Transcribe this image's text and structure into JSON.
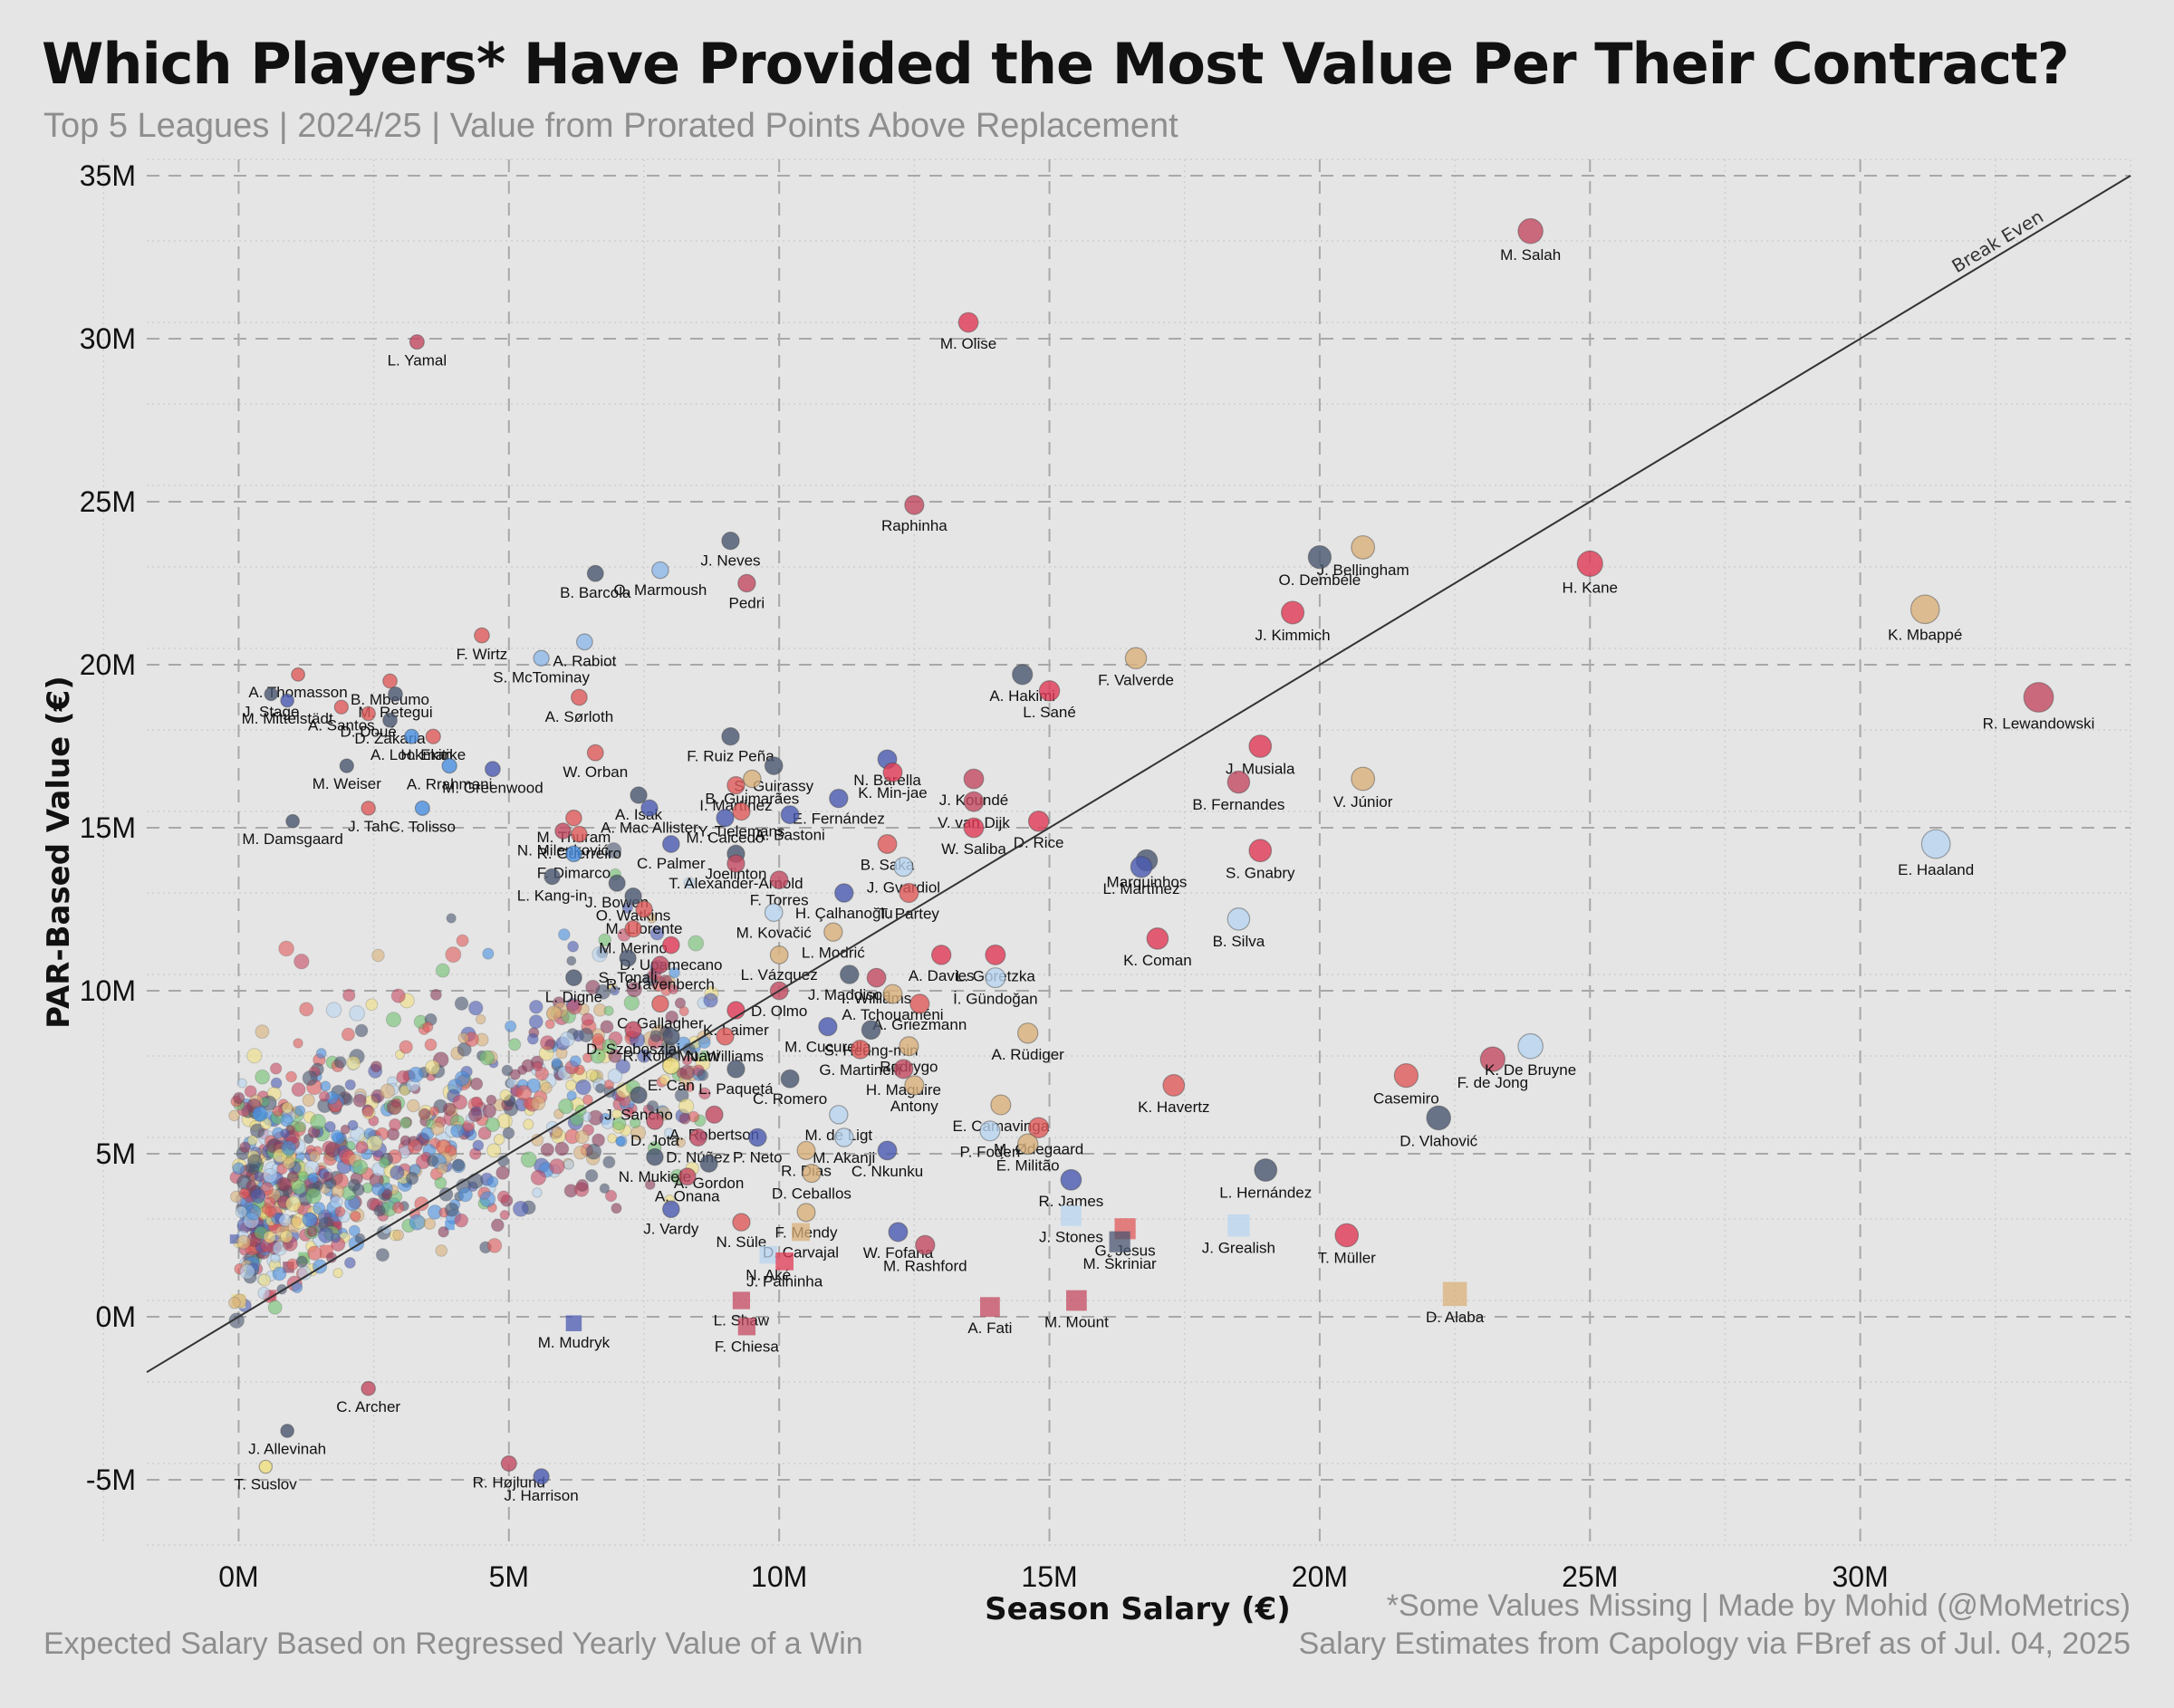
{
  "header": {
    "title": "Which Players* Have Provided the Most Value Per Their Contract?",
    "subtitle": "Top 5 Leagues | 2024/25 | Value from Prorated Points Above Replacement"
  },
  "footer": {
    "left": "Expected Salary Based on Regressed Yearly Value of a Win",
    "note": "*Some Values Missing | Made by Mohid (@MoMetrics)",
    "source": "Salary Estimates from Capology via FBref as of Jul. 04, 2025"
  },
  "chart_data": {
    "type": "scatter",
    "xlabel": "Season Salary (€)",
    "ylabel": "PAR-Based Value (€)",
    "xlim": [
      -1.7,
      35
    ],
    "ylim": [
      -7,
      35.5
    ],
    "xticks": [
      0,
      5,
      10,
      15,
      20,
      25,
      30
    ],
    "yticks": [
      -5,
      0,
      5,
      10,
      15,
      20,
      25,
      30,
      35
    ],
    "tick_suffix": "M",
    "break_even_label": "Break Even",
    "grid": true,
    "labeled_points": [
      {
        "name": "M. Salah",
        "x": 23.9,
        "y": 33.3,
        "c": "#c44a62"
      },
      {
        "name": "L. Yamal",
        "x": 3.3,
        "y": 29.9,
        "c": "#c44a62"
      },
      {
        "name": "M. Olise",
        "x": 13.5,
        "y": 30.5,
        "c": "#e03a55"
      },
      {
        "name": "Raphinha",
        "x": 12.5,
        "y": 24.9,
        "c": "#c44a62"
      },
      {
        "name": "J. Neves",
        "x": 9.1,
        "y": 23.8,
        "c": "#4a5670"
      },
      {
        "name": "O. Marmoush",
        "x": 7.8,
        "y": 22.9,
        "c": "#8fb8e8"
      },
      {
        "name": "B. Barcola",
        "x": 6.6,
        "y": 22.8,
        "c": "#4a5670"
      },
      {
        "name": "Pedri",
        "x": 9.4,
        "y": 22.5,
        "c": "#c44a62"
      },
      {
        "name": "J. Bellingham",
        "x": 20.8,
        "y": 23.6,
        "c": "#d9b07a"
      },
      {
        "name": "O. Dembélé",
        "x": 20.0,
        "y": 23.3,
        "c": "#4a5670"
      },
      {
        "name": "H. Kane",
        "x": 25.0,
        "y": 23.1,
        "c": "#e03a55"
      },
      {
        "name": "J. Kimmich",
        "x": 19.5,
        "y": 21.6,
        "c": "#e03a55"
      },
      {
        "name": "K. Mbappé",
        "x": 31.2,
        "y": 21.7,
        "c": "#d9b07a"
      },
      {
        "name": "R. Lewandowski",
        "x": 33.3,
        "y": 19.0,
        "c": "#c44a62"
      },
      {
        "name": "F. Wirtz",
        "x": 4.5,
        "y": 20.9,
        "c": "#e05a5a"
      },
      {
        "name": "A. Rabiot",
        "x": 6.4,
        "y": 20.7,
        "c": "#8fb8e8"
      },
      {
        "name": "S. McTominay",
        "x": 5.6,
        "y": 20.2,
        "c": "#8fb8e8"
      },
      {
        "name": "A. Thomasson",
        "x": 1.1,
        "y": 19.7,
        "c": "#e05a5a"
      },
      {
        "name": "B. Mbeumo",
        "x": 2.8,
        "y": 19.5,
        "c": "#e05a5a"
      },
      {
        "name": "J. Stage",
        "x": 0.6,
        "y": 19.1,
        "c": "#4a5670"
      },
      {
        "name": "M. Mittelstädt",
        "x": 0.9,
        "y": 18.9,
        "c": "#4a5ab0"
      },
      {
        "name": "M. Retegui",
        "x": 2.9,
        "y": 19.1,
        "c": "#4a5670"
      },
      {
        "name": "A. Sørloth",
        "x": 6.3,
        "y": 19.0,
        "c": "#e05a5a"
      },
      {
        "name": "A. Santos",
        "x": 1.9,
        "y": 18.7,
        "c": "#e05a5a"
      },
      {
        "name": "D. Doué",
        "x": 2.4,
        "y": 18.5,
        "c": "#e05a5a"
      },
      {
        "name": "D. Zakaria",
        "x": 2.8,
        "y": 18.3,
        "c": "#4a5670"
      },
      {
        "name": "A. Hakimi",
        "x": 14.5,
        "y": 19.7,
        "c": "#4a5670"
      },
      {
        "name": "F. Valverde",
        "x": 16.6,
        "y": 20.2,
        "c": "#d9b07a"
      },
      {
        "name": "L. Sané",
        "x": 15.0,
        "y": 19.2,
        "c": "#e03a55"
      },
      {
        "name": "A. Lookman",
        "x": 3.2,
        "y": 17.8,
        "c": "#4a8fe0"
      },
      {
        "name": "H. Ekitike",
        "x": 3.6,
        "y": 17.8,
        "c": "#e05a5a"
      },
      {
        "name": "W. Orban",
        "x": 6.6,
        "y": 17.3,
        "c": "#e05a5a"
      },
      {
        "name": "F. Ruiz Peña",
        "x": 9.1,
        "y": 17.8,
        "c": "#4a5670"
      },
      {
        "name": "S. Guirassy",
        "x": 9.9,
        "y": 16.9,
        "c": "#4a5670"
      },
      {
        "name": "N. Barella",
        "x": 12.0,
        "y": 17.1,
        "c": "#4a5ab0"
      },
      {
        "name": "J. Musiala",
        "x": 18.9,
        "y": 17.5,
        "c": "#e03a55"
      },
      {
        "name": "M. Weiser",
        "x": 2.0,
        "y": 16.9,
        "c": "#4a5670"
      },
      {
        "name": "A. Rrahmani",
        "x": 3.9,
        "y": 16.9,
        "c": "#4a8fe0"
      },
      {
        "name": "M. Greenwood",
        "x": 4.7,
        "y": 16.8,
        "c": "#4a5ab0"
      },
      {
        "name": "I. Martínez",
        "x": 9.2,
        "y": 16.3,
        "c": "#e05a5a"
      },
      {
        "name": "B. Guimarães",
        "x": 9.5,
        "y": 16.5,
        "c": "#d9b07a"
      },
      {
        "name": "K. Min-jae",
        "x": 12.1,
        "y": 16.7,
        "c": "#e03a55"
      },
      {
        "name": "J. Koundé",
        "x": 13.6,
        "y": 16.5,
        "c": "#c44a62"
      },
      {
        "name": "B. Fernandes",
        "x": 18.5,
        "y": 16.4,
        "c": "#c44a62"
      },
      {
        "name": "V. Júnior",
        "x": 20.8,
        "y": 16.5,
        "c": "#d9b07a"
      },
      {
        "name": "M. Damsgaard",
        "x": 1.0,
        "y": 15.2,
        "c": "#4a5670"
      },
      {
        "name": "J. Tah",
        "x": 2.4,
        "y": 15.6,
        "c": "#e05a5a"
      },
      {
        "name": "C. Tolisso",
        "x": 3.4,
        "y": 15.6,
        "c": "#4a8fe0"
      },
      {
        "name": "A. Isak",
        "x": 7.4,
        "y": 16.0,
        "c": "#4a5670"
      },
      {
        "name": "Y. Tielemans",
        "x": 9.3,
        "y": 15.5,
        "c": "#e05a5a"
      },
      {
        "name": "E. Fernández",
        "x": 11.1,
        "y": 15.9,
        "c": "#4a5ab0"
      },
      {
        "name": "V. van Dijk",
        "x": 13.6,
        "y": 15.8,
        "c": "#c44a62"
      },
      {
        "name": "M. Thuram",
        "x": 6.2,
        "y": 15.3,
        "c": "#e05a5a"
      },
      {
        "name": "A. Mac Allister",
        "x": 7.6,
        "y": 15.6,
        "c": "#4a5ab0"
      },
      {
        "name": "N. Milenković",
        "x": 6.0,
        "y": 14.9,
        "c": "#c44a62"
      },
      {
        "name": "M. Caicedo",
        "x": 9.0,
        "y": 15.3,
        "c": "#4a5ab0"
      },
      {
        "name": "A. Bastoni",
        "x": 10.2,
        "y": 15.4,
        "c": "#4a5ab0"
      },
      {
        "name": "W. Saliba",
        "x": 13.6,
        "y": 15.0,
        "c": "#e03a55"
      },
      {
        "name": "D. Rice",
        "x": 14.8,
        "y": 15.2,
        "c": "#e03a55"
      },
      {
        "name": "R. Guerreiro",
        "x": 6.3,
        "y": 14.8,
        "c": "#e05a5a"
      },
      {
        "name": "C. Palmer",
        "x": 8.0,
        "y": 14.5,
        "c": "#4a5ab0"
      },
      {
        "name": "Joelinton",
        "x": 9.2,
        "y": 14.2,
        "c": "#4a5670"
      },
      {
        "name": "B. Saka",
        "x": 12.0,
        "y": 14.5,
        "c": "#e05a5a"
      },
      {
        "name": "Marquinhos",
        "x": 16.8,
        "y": 14.0,
        "c": "#4a5670"
      },
      {
        "name": "S. Gnabry",
        "x": 18.9,
        "y": 14.3,
        "c": "#e03a55"
      },
      {
        "name": "E. Haaland",
        "x": 31.4,
        "y": 14.5,
        "c": "#b8d4f0"
      },
      {
        "name": "F. Dimarco",
        "x": 6.2,
        "y": 14.2,
        "c": "#4a8fe0"
      },
      {
        "name": "T. Alexander-Arnold",
        "x": 9.2,
        "y": 13.9,
        "c": "#c44a62"
      },
      {
        "name": "J. Gvardiol",
        "x": 12.3,
        "y": 13.8,
        "c": "#b8d4f0"
      },
      {
        "name": "L. Martínez",
        "x": 16.7,
        "y": 13.8,
        "c": "#4a5ab0"
      },
      {
        "name": "L. Kang-in",
        "x": 5.8,
        "y": 13.5,
        "c": "#4a5670"
      },
      {
        "name": "J. Bowen",
        "x": 7.0,
        "y": 13.3,
        "c": "#4a5670"
      },
      {
        "name": "T. Partey",
        "x": 12.4,
        "y": 13.0,
        "c": "#e05a5a"
      },
      {
        "name": "F. Torres",
        "x": 10.0,
        "y": 13.4,
        "c": "#c44a62"
      },
      {
        "name": "O. Watkins",
        "x": 7.3,
        "y": 12.9,
        "c": "#4a5670"
      },
      {
        "name": "M. Llorente",
        "x": 7.5,
        "y": 12.5,
        "c": "#e05a5a"
      },
      {
        "name": "H. Çalhanoğlu",
        "x": 11.2,
        "y": 13.0,
        "c": "#4a5ab0"
      },
      {
        "name": "M. Kovačić",
        "x": 9.9,
        "y": 12.4,
        "c": "#b8d4f0"
      },
      {
        "name": "M. Merino",
        "x": 7.3,
        "y": 11.9,
        "c": "#e05a5a"
      },
      {
        "name": "B. Silva",
        "x": 18.5,
        "y": 12.2,
        "c": "#b8d4f0"
      },
      {
        "name": "D. Upamecano",
        "x": 8.0,
        "y": 11.4,
        "c": "#e03a55"
      },
      {
        "name": "L. Modrić",
        "x": 11.0,
        "y": 11.8,
        "c": "#d9b07a"
      },
      {
        "name": "A. Davies",
        "x": 13.0,
        "y": 11.1,
        "c": "#e03a55"
      },
      {
        "name": "K. Coman",
        "x": 17.0,
        "y": 11.6,
        "c": "#e03a55"
      },
      {
        "name": "S. Tonali",
        "x": 7.2,
        "y": 11.0,
        "c": "#4a5670"
      },
      {
        "name": "L. Vázquez",
        "x": 10.0,
        "y": 11.1,
        "c": "#d9b07a"
      },
      {
        "name": "L. Goretzka",
        "x": 14.0,
        "y": 11.1,
        "c": "#e03a55"
      },
      {
        "name": "R. Gravenberch",
        "x": 7.8,
        "y": 10.8,
        "c": "#c44a62"
      },
      {
        "name": "J. Maddison",
        "x": 11.3,
        "y": 10.5,
        "c": "#4a5670"
      },
      {
        "name": "İ. Gündoğan",
        "x": 14.0,
        "y": 10.4,
        "c": "#b8d4f0"
      },
      {
        "name": "I. Williams",
        "x": 11.8,
        "y": 10.4,
        "c": "#c44a62"
      },
      {
        "name": "L. Digne",
        "x": 6.2,
        "y": 10.4,
        "c": "#4a5670"
      },
      {
        "name": "D. Olmo",
        "x": 10.0,
        "y": 10.0,
        "c": "#c44a62"
      },
      {
        "name": "A. Tchouaméni",
        "x": 12.1,
        "y": 9.9,
        "c": "#d9b07a"
      },
      {
        "name": "A. Griezmann",
        "x": 12.6,
        "y": 9.6,
        "c": "#e05a5a"
      },
      {
        "name": "K. Laimer",
        "x": 9.2,
        "y": 9.4,
        "c": "#e03a55"
      },
      {
        "name": "C. Gallagher",
        "x": 7.8,
        "y": 9.6,
        "c": "#e05a5a"
      },
      {
        "name": "M. Cucurella",
        "x": 10.9,
        "y": 8.9,
        "c": "#4a5ab0"
      },
      {
        "name": "S. Heung-min",
        "x": 11.7,
        "y": 8.8,
        "c": "#4a5670"
      },
      {
        "name": "A. Rüdiger",
        "x": 14.6,
        "y": 8.7,
        "c": "#d9b07a"
      },
      {
        "name": "D. Szoboszlai",
        "x": 7.3,
        "y": 8.8,
        "c": "#c44a62"
      },
      {
        "name": "R. Kolo Muani",
        "x": 8.0,
        "y": 8.6,
        "c": "#4a5670"
      },
      {
        "name": "N. Williams",
        "x": 9.0,
        "y": 8.6,
        "c": "#e05a5a"
      },
      {
        "name": "G. Martinelli",
        "x": 11.5,
        "y": 8.2,
        "c": "#e05a5a"
      },
      {
        "name": "Rodrygo",
        "x": 12.4,
        "y": 8.3,
        "c": "#d9b07a"
      },
      {
        "name": "E. Can",
        "x": 8.0,
        "y": 7.7,
        "c": "#f0e080"
      },
      {
        "name": "L. Paquetá",
        "x": 9.2,
        "y": 7.6,
        "c": "#4a5670"
      },
      {
        "name": "H. Maguire",
        "x": 12.3,
        "y": 7.6,
        "c": "#c44a62"
      },
      {
        "name": "C. Romero",
        "x": 10.2,
        "y": 7.3,
        "c": "#4a5670"
      },
      {
        "name": "J. Sancho",
        "x": 7.4,
        "y": 6.8,
        "c": "#4a5670"
      },
      {
        "name": "Antony",
        "x": 12.5,
        "y": 7.1,
        "c": "#d9b07a"
      },
      {
        "name": "E. Camavinga",
        "x": 14.1,
        "y": 6.5,
        "c": "#d9b07a"
      },
      {
        "name": "K. Havertz",
        "x": 17.3,
        "y": 7.1,
        "c": "#e05a5a"
      },
      {
        "name": "Casemiro",
        "x": 21.6,
        "y": 7.4,
        "c": "#e05a5a"
      },
      {
        "name": "F. de Jong",
        "x": 23.2,
        "y": 7.9,
        "c": "#c44a62"
      },
      {
        "name": "K. De Bruyne",
        "x": 23.9,
        "y": 8.3,
        "c": "#b8d4f0"
      },
      {
        "name": "D. Vlahović",
        "x": 22.2,
        "y": 6.1,
        "c": "#4a5670"
      },
      {
        "name": "A. Robertson",
        "x": 8.8,
        "y": 6.2,
        "c": "#c44a62"
      },
      {
        "name": "M. de Ligt",
        "x": 11.1,
        "y": 6.2,
        "c": "#b8d4f0"
      },
      {
        "name": "D. Jota",
        "x": 7.7,
        "y": 6.0,
        "c": "#c44a62"
      },
      {
        "name": "P. Foden",
        "x": 13.9,
        "y": 5.7,
        "c": "#b8d4f0"
      },
      {
        "name": "M. Ødegaard",
        "x": 14.8,
        "y": 5.8,
        "c": "#e05a5a"
      },
      {
        "name": "D. Núñez",
        "x": 8.5,
        "y": 5.5,
        "c": "#c44a62"
      },
      {
        "name": "P. Neto",
        "x": 9.6,
        "y": 5.5,
        "c": "#4a5ab0"
      },
      {
        "name": "M. Akanji",
        "x": 11.2,
        "y": 5.5,
        "c": "#b8d4f0"
      },
      {
        "name": "N. Mukiele",
        "x": 7.7,
        "y": 4.9,
        "c": "#4a5670"
      },
      {
        "name": "R. Dias",
        "x": 10.5,
        "y": 5.1,
        "c": "#d9b07a"
      },
      {
        "name": "C. Nkunku",
        "x": 12.0,
        "y": 5.1,
        "c": "#4a5ab0"
      },
      {
        "name": "É. Militão",
        "x": 14.6,
        "y": 5.3,
        "c": "#d9b07a"
      },
      {
        "name": "A. Gordon",
        "x": 8.7,
        "y": 4.7,
        "c": "#4a5670"
      },
      {
        "name": "D. Ceballos",
        "x": 10.6,
        "y": 4.4,
        "c": "#d9b07a"
      },
      {
        "name": "A. Onana",
        "x": 8.3,
        "y": 4.3,
        "c": "#c44a62"
      },
      {
        "name": "R. James",
        "x": 15.4,
        "y": 4.2,
        "c": "#4a5ab0"
      },
      {
        "name": "L. Hernández",
        "x": 19.0,
        "y": 4.5,
        "c": "#4a5670"
      },
      {
        "name": "J. Stones",
        "x": 15.4,
        "y": 3.1,
        "c": "#b8d4f0",
        "shape": "sq"
      },
      {
        "name": "F. Mendy",
        "x": 10.5,
        "y": 3.2,
        "c": "#d9b07a"
      },
      {
        "name": "J. Vardy",
        "x": 8.0,
        "y": 3.3,
        "c": "#4a5ab0"
      },
      {
        "name": "N. Süle",
        "x": 9.3,
        "y": 2.9,
        "c": "#e05a5a"
      },
      {
        "name": "W. Fofana",
        "x": 12.2,
        "y": 2.6,
        "c": "#4a5ab0"
      },
      {
        "name": "G. Jesus",
        "x": 16.4,
        "y": 2.7,
        "c": "#e05a5a",
        "shape": "sq"
      },
      {
        "name": "J. Grealish",
        "x": 18.5,
        "y": 2.8,
        "c": "#b8d4f0",
        "shape": "sq"
      },
      {
        "name": "M. Škriniar",
        "x": 16.3,
        "y": 2.3,
        "c": "#4a5670",
        "shape": "sq"
      },
      {
        "name": "T. Müller",
        "x": 20.5,
        "y": 2.5,
        "c": "#e03a55"
      },
      {
        "name": "D. Carvajal",
        "x": 10.4,
        "y": 2.6,
        "c": "#d9b07a",
        "shape": "sq"
      },
      {
        "name": "M. Rashford",
        "x": 12.7,
        "y": 2.2,
        "c": "#c44a62"
      },
      {
        "name": "N. Aké",
        "x": 9.8,
        "y": 1.9,
        "c": "#b8d4f0",
        "shape": "sq"
      },
      {
        "name": "J. Palhinha",
        "x": 10.1,
        "y": 1.7,
        "c": "#e03a55",
        "shape": "sq"
      },
      {
        "name": "D. Alaba",
        "x": 22.5,
        "y": 0.7,
        "c": "#d9b07a",
        "shape": "sq"
      },
      {
        "name": "A. Fati",
        "x": 13.9,
        "y": 0.3,
        "c": "#c44a62",
        "shape": "sq"
      },
      {
        "name": "M. Mount",
        "x": 15.5,
        "y": 0.5,
        "c": "#c44a62",
        "shape": "sq"
      },
      {
        "name": "L. Shaw",
        "x": 9.3,
        "y": 0.5,
        "c": "#c44a62",
        "shape": "sq"
      },
      {
        "name": "F. Chiesa",
        "x": 9.4,
        "y": -0.3,
        "c": "#c44a62",
        "shape": "sq"
      },
      {
        "name": "M. Mudryk",
        "x": 6.2,
        "y": -0.2,
        "c": "#4a5ab0",
        "shape": "sq"
      },
      {
        "name": "C. Archer",
        "x": 2.4,
        "y": -2.2,
        "c": "#c44a62"
      },
      {
        "name": "J. Allevinah",
        "x": 0.9,
        "y": -3.5,
        "c": "#4a5670"
      },
      {
        "name": "R. Højlund",
        "x": 5.0,
        "y": -4.5,
        "c": "#c44a62"
      },
      {
        "name": "T. Suslov",
        "x": 0.5,
        "y": -4.6,
        "c": "#f0e080"
      },
      {
        "name": "J. Harrison",
        "x": 5.6,
        "y": -4.9,
        "c": "#4a5ab0"
      }
    ],
    "background_cloud": {
      "description_count": 900,
      "x_range": [
        0,
        11
      ],
      "y_range": [
        -2,
        16
      ],
      "colors": [
        "#c44a62",
        "#e05a5a",
        "#4a5670",
        "#4a5ab0",
        "#4a8fe0",
        "#b8d4f0",
        "#d9b07a",
        "#f0e080",
        "#70c070",
        "#8a3a5a"
      ]
    }
  }
}
